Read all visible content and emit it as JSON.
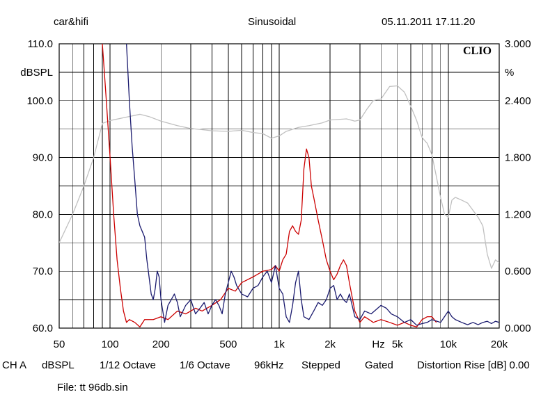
{
  "header": {
    "brand": "car&hifi",
    "mode": "Sinusoidal",
    "timestamp": "05.11.2011 17.11.20"
  },
  "logo_text": "CLIO",
  "footer": {
    "settings": [
      "CH A",
      "dBSPL",
      "1/12 Octave",
      "1/6 Octave",
      "96kHz",
      "Stepped",
      "Gated",
      "Distortion Rise [dB] 0.00"
    ],
    "file": "File: tt 96db.sin"
  },
  "chart_data": {
    "type": "line",
    "x_scale": "log",
    "xlim": [
      50,
      20000
    ],
    "ylim_left": [
      60,
      110
    ],
    "ylim_right": [
      0,
      3.0
    ],
    "ylabel_left": "dBSPL",
    "ylabel_right": "%",
    "x_unit_label": "Hz",
    "grid": true,
    "x_ticks": [
      {
        "value": 50,
        "label": "50"
      },
      {
        "value": 100,
        "label": "100"
      },
      {
        "value": 200,
        "label": "200"
      },
      {
        "value": 500,
        "label": "500"
      },
      {
        "value": 1000,
        "label": "1k"
      },
      {
        "value": 2000,
        "label": "2k"
      },
      {
        "value": 5000,
        "label": "5k"
      },
      {
        "value": 10000,
        "label": "10k"
      },
      {
        "value": 20000,
        "label": "20k"
      }
    ],
    "y_ticks_left": [
      {
        "value": 110,
        "label": "110.0"
      },
      {
        "value": 100,
        "label": "100.0"
      },
      {
        "value": 90,
        "label": "90.0"
      },
      {
        "value": 80,
        "label": "80.0"
      },
      {
        "value": 70,
        "label": "70.0"
      },
      {
        "value": 60,
        "label": "60.0"
      }
    ],
    "y_ticks_right": [
      {
        "value": 3.0,
        "label": "3.000"
      },
      {
        "value": 2.4,
        "label": "2.400"
      },
      {
        "value": 1.8,
        "label": "1.800"
      },
      {
        "value": 1.2,
        "label": "1.200"
      },
      {
        "value": 0.6,
        "label": "0.600"
      },
      {
        "value": 0.0,
        "label": "0.000"
      }
    ],
    "series": [
      {
        "color": "#c0c0c0",
        "axis": "left",
        "points": [
          [
            50,
            75
          ],
          [
            60,
            80
          ],
          [
            70,
            85
          ],
          [
            80,
            90
          ],
          [
            90,
            96
          ],
          [
            100,
            96.5
          ],
          [
            120,
            97
          ],
          [
            150,
            97.6
          ],
          [
            170,
            97.2
          ],
          [
            200,
            96.4
          ],
          [
            250,
            95.6
          ],
          [
            300,
            95.1
          ],
          [
            350,
            94.9
          ],
          [
            400,
            94.7
          ],
          [
            500,
            94.6
          ],
          [
            600,
            94.8
          ],
          [
            700,
            94.4
          ],
          [
            800,
            94.2
          ],
          [
            900,
            93.4
          ],
          [
            1000,
            93.8
          ],
          [
            1100,
            94.6
          ],
          [
            1300,
            95.3
          ],
          [
            1500,
            95.6
          ],
          [
            1800,
            96.1
          ],
          [
            2000,
            96.6
          ],
          [
            2500,
            96.8
          ],
          [
            2800,
            96.4
          ],
          [
            3000,
            96.6
          ],
          [
            3300,
            98.5
          ],
          [
            3600,
            100
          ],
          [
            4000,
            100.3
          ],
          [
            4500,
            102.5
          ],
          [
            5000,
            102.6
          ],
          [
            5500,
            101.5
          ],
          [
            6000,
            99
          ],
          [
            6500,
            96.5
          ],
          [
            7000,
            93.5
          ],
          [
            7500,
            92.5
          ],
          [
            8000,
            90.5
          ],
          [
            9000,
            83
          ],
          [
            9500,
            80
          ],
          [
            10000,
            79.5
          ],
          [
            10500,
            82.5
          ],
          [
            11000,
            83
          ],
          [
            12000,
            82.5
          ],
          [
            13000,
            82
          ],
          [
            15000,
            79.5
          ],
          [
            16000,
            78
          ],
          [
            17000,
            73
          ],
          [
            18000,
            70.5
          ],
          [
            19000,
            72
          ],
          [
            20000,
            71.5
          ]
        ]
      },
      {
        "color": "#cc0000",
        "axis": "left",
        "points": [
          [
            90,
            110
          ],
          [
            92,
            106
          ],
          [
            95,
            100
          ],
          [
            100,
            90
          ],
          [
            105,
            80
          ],
          [
            110,
            72
          ],
          [
            115,
            67
          ],
          [
            120,
            63
          ],
          [
            125,
            61
          ],
          [
            130,
            61.5
          ],
          [
            140,
            61
          ],
          [
            150,
            60.2
          ],
          [
            160,
            61.5
          ],
          [
            180,
            61.5
          ],
          [
            200,
            62
          ],
          [
            220,
            61.5
          ],
          [
            250,
            63
          ],
          [
            280,
            62.5
          ],
          [
            300,
            63
          ],
          [
            320,
            63.5
          ],
          [
            350,
            63
          ],
          [
            400,
            64
          ],
          [
            450,
            65
          ],
          [
            500,
            67
          ],
          [
            550,
            66.5
          ],
          [
            600,
            68
          ],
          [
            700,
            69
          ],
          [
            800,
            70
          ],
          [
            900,
            70.3
          ],
          [
            950,
            71
          ],
          [
            1000,
            70
          ],
          [
            1050,
            72
          ],
          [
            1100,
            73
          ],
          [
            1150,
            77
          ],
          [
            1200,
            78
          ],
          [
            1250,
            77
          ],
          [
            1300,
            76.5
          ],
          [
            1350,
            79
          ],
          [
            1400,
            88
          ],
          [
            1450,
            91.5
          ],
          [
            1500,
            90
          ],
          [
            1550,
            85
          ],
          [
            1600,
            83
          ],
          [
            1700,
            79
          ],
          [
            1800,
            75.5
          ],
          [
            1900,
            72
          ],
          [
            2000,
            70
          ],
          [
            2100,
            68.5
          ],
          [
            2200,
            69.5
          ],
          [
            2300,
            71
          ],
          [
            2400,
            72
          ],
          [
            2500,
            71
          ],
          [
            2600,
            68
          ],
          [
            2800,
            63
          ],
          [
            3000,
            61
          ],
          [
            3200,
            62
          ],
          [
            3400,
            61.5
          ],
          [
            3600,
            61
          ],
          [
            4000,
            61.5
          ],
          [
            4500,
            61
          ],
          [
            5000,
            60.5
          ],
          [
            5500,
            61
          ],
          [
            6000,
            60.5
          ],
          [
            6500,
            60.2
          ],
          [
            7000,
            61.5
          ],
          [
            7500,
            62
          ],
          [
            8000,
            62
          ],
          [
            8500,
            61
          ]
        ]
      },
      {
        "color": "#1a1a6e",
        "axis": "left",
        "points": [
          [
            125,
            110
          ],
          [
            128,
            104
          ],
          [
            130,
            100
          ],
          [
            135,
            92
          ],
          [
            140,
            86
          ],
          [
            145,
            80
          ],
          [
            150,
            78
          ],
          [
            155,
            77
          ],
          [
            160,
            76
          ],
          [
            165,
            72
          ],
          [
            170,
            69
          ],
          [
            175,
            66
          ],
          [
            180,
            65
          ],
          [
            185,
            67
          ],
          [
            190,
            70
          ],
          [
            195,
            69
          ],
          [
            200,
            65
          ],
          [
            210,
            61
          ],
          [
            220,
            64
          ],
          [
            230,
            65
          ],
          [
            240,
            66
          ],
          [
            250,
            64.5
          ],
          [
            260,
            62
          ],
          [
            280,
            64
          ],
          [
            300,
            65
          ],
          [
            320,
            62.5
          ],
          [
            340,
            63.5
          ],
          [
            360,
            64.5
          ],
          [
            380,
            62.5
          ],
          [
            400,
            64
          ],
          [
            420,
            65
          ],
          [
            440,
            64
          ],
          [
            460,
            62.5
          ],
          [
            480,
            66
          ],
          [
            500,
            68
          ],
          [
            520,
            70
          ],
          [
            540,
            69
          ],
          [
            560,
            67.5
          ],
          [
            600,
            66
          ],
          [
            650,
            65.5
          ],
          [
            700,
            67
          ],
          [
            750,
            67.5
          ],
          [
            800,
            69
          ],
          [
            850,
            70
          ],
          [
            900,
            68
          ],
          [
            950,
            71
          ],
          [
            1000,
            67
          ],
          [
            1050,
            66
          ],
          [
            1100,
            62
          ],
          [
            1150,
            61
          ],
          [
            1200,
            64
          ],
          [
            1250,
            68
          ],
          [
            1300,
            70
          ],
          [
            1350,
            65
          ],
          [
            1400,
            62
          ],
          [
            1500,
            61.5
          ],
          [
            1600,
            63
          ],
          [
            1700,
            64.5
          ],
          [
            1800,
            64
          ],
          [
            1900,
            65
          ],
          [
            2000,
            67
          ],
          [
            2100,
            67.5
          ],
          [
            2200,
            65
          ],
          [
            2300,
            66
          ],
          [
            2400,
            65
          ],
          [
            2500,
            64.5
          ],
          [
            2600,
            66
          ],
          [
            2700,
            64
          ],
          [
            2800,
            62
          ],
          [
            3000,
            61.5
          ],
          [
            3200,
            63
          ],
          [
            3500,
            62.5
          ],
          [
            4000,
            64
          ],
          [
            4300,
            63.5
          ],
          [
            4600,
            62.5
          ],
          [
            5000,
            62
          ],
          [
            5500,
            61
          ],
          [
            6000,
            61.5
          ],
          [
            6500,
            60.5
          ],
          [
            7000,
            60.8
          ],
          [
            7500,
            61
          ],
          [
            8000,
            61.5
          ],
          [
            9000,
            61
          ],
          [
            10000,
            63
          ],
          [
            10500,
            62
          ],
          [
            11000,
            61.5
          ],
          [
            12000,
            61
          ],
          [
            13000,
            60.6
          ],
          [
            14000,
            61
          ],
          [
            15000,
            60.6
          ],
          [
            16000,
            61
          ],
          [
            17000,
            61.2
          ],
          [
            18000,
            60.8
          ],
          [
            19000,
            61.2
          ],
          [
            20000,
            61
          ]
        ]
      }
    ]
  }
}
